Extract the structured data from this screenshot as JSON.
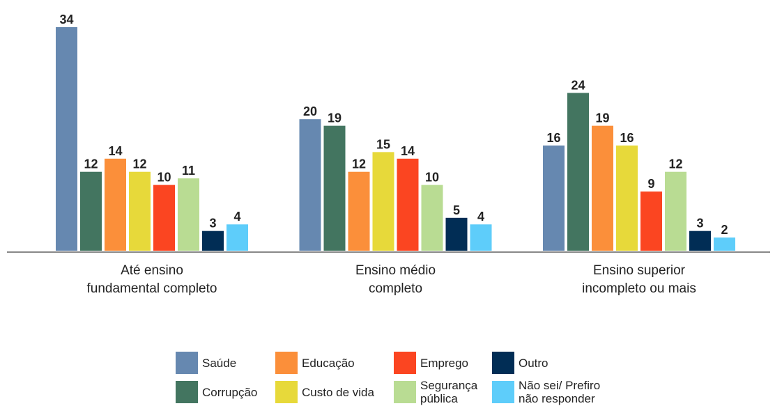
{
  "chart_data": {
    "type": "bar",
    "categories": [
      "Até ensino\nfundamental completo",
      "Ensino médio\ncompleto",
      "Ensino superior\nincompleto ou mais"
    ],
    "series": [
      {
        "name": "Saúde",
        "color": "#6688b0",
        "values": [
          34,
          20,
          16
        ]
      },
      {
        "name": "Corrupção",
        "color": "#437560",
        "values": [
          12,
          19,
          24
        ]
      },
      {
        "name": "Educação",
        "color": "#fb8f3a",
        "values": [
          14,
          12,
          19
        ]
      },
      {
        "name": "Custo de vida",
        "color": "#e7d93a",
        "values": [
          12,
          15,
          16
        ]
      },
      {
        "name": "Emprego",
        "color": "#fb4521",
        "values": [
          10,
          14,
          9
        ]
      },
      {
        "name": "Segurança\npública",
        "color": "#b9dc93",
        "values": [
          11,
          10,
          12
        ]
      },
      {
        "name": "Outro",
        "color": "#012d55",
        "values": [
          3,
          5,
          3
        ]
      },
      {
        "name": "Não sei/ Prefiro\nnão responder",
        "color": "#5ecdfa",
        "values": [
          4,
          4,
          2
        ]
      }
    ],
    "ylim": [
      0,
      34
    ]
  }
}
